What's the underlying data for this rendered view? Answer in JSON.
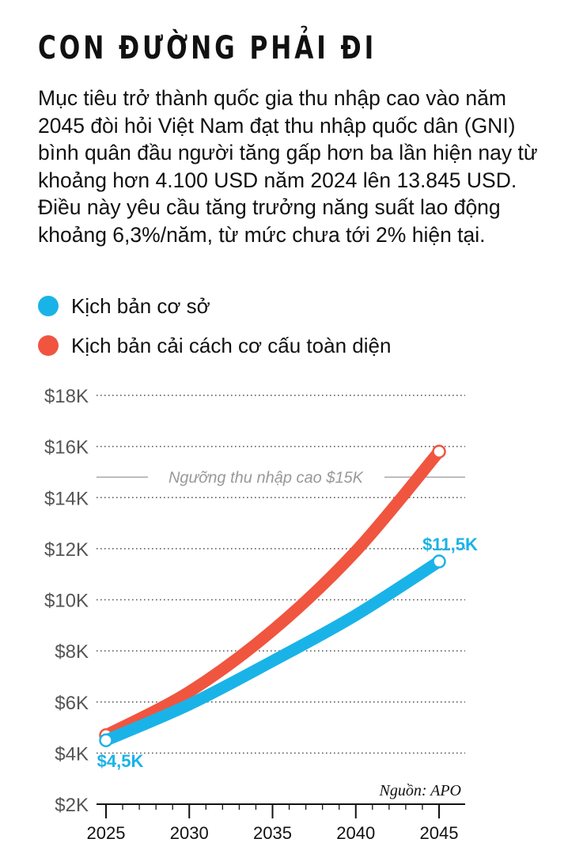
{
  "title": "CON ĐƯỜNG PHẢI ĐI",
  "description": "Mục tiêu trở thành quốc gia thu nhập cao vào năm 2045 đòi hỏi Việt Nam đạt thu nhập quốc dân (GNI) bình quân đầu người tăng gấp hơn ba lần hiện nay từ khoảng hơn 4.100 USD năm 2024 lên 13.845 USD. Điều này yêu cầu tăng trưởng năng suất lao động khoảng 6,3%/năm, từ mức chưa tới 2% hiện tại.",
  "legend": [
    {
      "label": "Kịch bản cơ sở",
      "color": "#1ab3e8"
    },
    {
      "label": "Kịch bản cải cách cơ cấu toàn diện",
      "color": "#f0553f"
    }
  ],
  "source": "Nguồn: APO",
  "chart_data": {
    "type": "line",
    "x": [
      2025,
      2030,
      2035,
      2040,
      2045
    ],
    "xticks": [
      "2025",
      "2030",
      "2035",
      "2040",
      "2045"
    ],
    "yticks": [
      "$2K",
      "$4K",
      "$6K",
      "$8K",
      "$10K",
      "$12K",
      "$14K",
      "$16K",
      "$18K"
    ],
    "ylim": [
      2,
      18
    ],
    "grid": true,
    "series": [
      {
        "name": "Kịch bản cơ sở",
        "color": "#1ab3e8",
        "values": [
          4.5,
          5.9,
          7.6,
          9.4,
          11.5
        ]
      },
      {
        "name": "Kịch bản cải cách cơ cấu toàn diện",
        "color": "#f0553f",
        "values": [
          4.7,
          6.4,
          8.8,
          11.9,
          15.8
        ]
      }
    ],
    "annotations": {
      "threshold": {
        "label": "Ngưỡng thu nhập cao $15K",
        "value": 14.8
      },
      "start_label": "$4,5K",
      "end_label": "$11,5K"
    }
  }
}
